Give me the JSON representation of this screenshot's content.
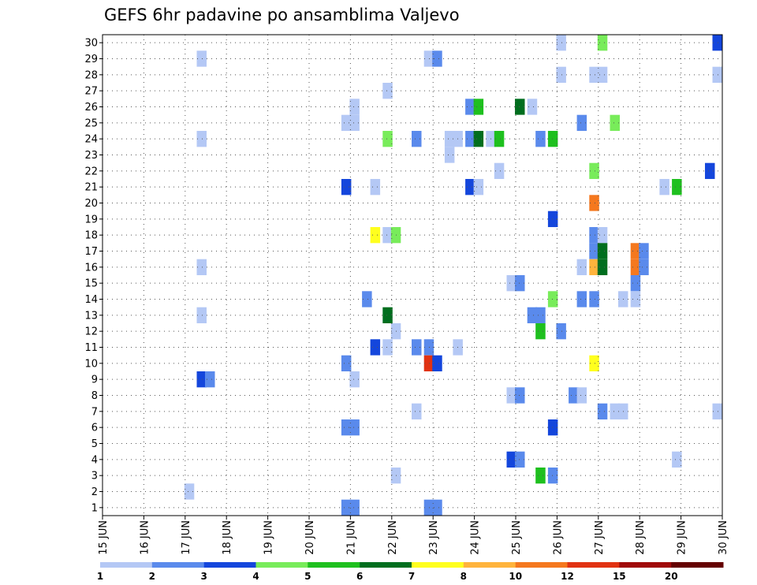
{
  "chart_data": {
    "type": "heatmap",
    "title": "GEFS 6hr padavine po ansamblima Valjevo",
    "x_tick_labels": [
      "15 JUN",
      "16 JUN",
      "17 JUN",
      "18 JUN",
      "19 JUN",
      "20 JUN",
      "21 JUN",
      "22 JUN",
      "23 JUN",
      "24 JUN",
      "25 JUN",
      "26 JUN",
      "27 JUN",
      "28 JUN",
      "29 JUN",
      "30 JUN"
    ],
    "y_tick_labels": [
      "1",
      "2",
      "3",
      "4",
      "5",
      "6",
      "7",
      "8",
      "9",
      "10",
      "11",
      "12",
      "13",
      "14",
      "15",
      "16",
      "17",
      "18",
      "19",
      "20",
      "21",
      "22",
      "23",
      "24",
      "25",
      "26",
      "27",
      "28",
      "29",
      "30"
    ],
    "grid": true,
    "legend": {
      "placement": "bottom",
      "labels": [
        "1",
        "2",
        "3",
        "4",
        "5",
        "6",
        "7",
        "8",
        "10",
        "12",
        "15",
        "20"
      ],
      "colors": [
        "#b4c8f5",
        "#5a8aec",
        "#1446dc",
        "#78ec5a",
        "#1ec01e",
        "#006e1e",
        "#ffff1e",
        "#ffb43c",
        "#f5781e",
        "#e13212",
        "#a00a0a",
        "#640000"
      ]
    },
    "cells": [
      {
        "member": 30,
        "day": 26.1,
        "class": 1
      },
      {
        "member": 30,
        "day": 27.1,
        "class": 4
      },
      {
        "member": 30,
        "day": 30.0,
        "class": 3
      },
      {
        "member": 29,
        "day": 17.4,
        "class": 1
      },
      {
        "member": 29,
        "day": 22.9,
        "class": 1
      },
      {
        "member": 29,
        "day": 23.1,
        "class": 2
      },
      {
        "member": 28,
        "day": 26.1,
        "class": 1
      },
      {
        "member": 28,
        "day": 26.9,
        "class": 1
      },
      {
        "member": 28,
        "day": 27.1,
        "class": 1
      },
      {
        "member": 28,
        "day": 30.0,
        "class": 1
      },
      {
        "member": 27,
        "day": 21.9,
        "class": 1
      },
      {
        "member": 26,
        "day": 21.1,
        "class": 1
      },
      {
        "member": 26,
        "day": 23.9,
        "class": 2
      },
      {
        "member": 26,
        "day": 24.1,
        "class": 5
      },
      {
        "member": 26,
        "day": 25.1,
        "class": 6
      },
      {
        "member": 26,
        "day": 25.4,
        "class": 1
      },
      {
        "member": 25,
        "day": 20.9,
        "class": 1
      },
      {
        "member": 25,
        "day": 21.1,
        "class": 1
      },
      {
        "member": 25,
        "day": 26.6,
        "class": 2
      },
      {
        "member": 25,
        "day": 27.4,
        "class": 4
      },
      {
        "member": 24,
        "day": 17.4,
        "class": 1
      },
      {
        "member": 24,
        "day": 21.9,
        "class": 4
      },
      {
        "member": 24,
        "day": 22.6,
        "class": 2
      },
      {
        "member": 24,
        "day": 23.4,
        "class": 1
      },
      {
        "member": 24,
        "day": 23.6,
        "class": 1
      },
      {
        "member": 24,
        "day": 23.9,
        "class": 2
      },
      {
        "member": 24,
        "day": 24.1,
        "class": 6
      },
      {
        "member": 24,
        "day": 24.4,
        "class": 1
      },
      {
        "member": 24,
        "day": 24.6,
        "class": 5
      },
      {
        "member": 24,
        "day": 25.6,
        "class": 2
      },
      {
        "member": 24,
        "day": 25.9,
        "class": 5
      },
      {
        "member": 23,
        "day": 23.4,
        "class": 1
      },
      {
        "member": 22,
        "day": 24.6,
        "class": 1
      },
      {
        "member": 22,
        "day": 26.9,
        "class": 4
      },
      {
        "member": 22,
        "day": 29.7,
        "class": 3
      },
      {
        "member": 21,
        "day": 20.9,
        "class": 3
      },
      {
        "member": 21,
        "day": 21.6,
        "class": 1
      },
      {
        "member": 21,
        "day": 23.9,
        "class": 3
      },
      {
        "member": 21,
        "day": 24.1,
        "class": 1
      },
      {
        "member": 21,
        "day": 28.6,
        "class": 1
      },
      {
        "member": 21,
        "day": 28.9,
        "class": 5
      },
      {
        "member": 20,
        "day": 26.9,
        "class": 9
      },
      {
        "member": 19,
        "day": 25.9,
        "class": 3
      },
      {
        "member": 18,
        "day": 21.6,
        "class": 7
      },
      {
        "member": 18,
        "day": 21.9,
        "class": 1
      },
      {
        "member": 18,
        "day": 22.1,
        "class": 4
      },
      {
        "member": 18,
        "day": 26.9,
        "class": 2
      },
      {
        "member": 18,
        "day": 27.1,
        "class": 1
      },
      {
        "member": 17,
        "day": 26.9,
        "class": 2
      },
      {
        "member": 17,
        "day": 27.1,
        "class": 6
      },
      {
        "member": 17,
        "day": 27.9,
        "class": 9
      },
      {
        "member": 17,
        "day": 28.1,
        "class": 2
      },
      {
        "member": 16,
        "day": 17.4,
        "class": 1
      },
      {
        "member": 16,
        "day": 26.6,
        "class": 1
      },
      {
        "member": 16,
        "day": 26.9,
        "class": 8
      },
      {
        "member": 16,
        "day": 27.1,
        "class": 6
      },
      {
        "member": 16,
        "day": 27.9,
        "class": 9
      },
      {
        "member": 16,
        "day": 28.1,
        "class": 2
      },
      {
        "member": 15,
        "day": 24.9,
        "class": 1
      },
      {
        "member": 15,
        "day": 25.1,
        "class": 2
      },
      {
        "member": 15,
        "day": 27.9,
        "class": 2
      },
      {
        "member": 14,
        "day": 21.4,
        "class": 2
      },
      {
        "member": 14,
        "day": 25.9,
        "class": 4
      },
      {
        "member": 14,
        "day": 26.6,
        "class": 2
      },
      {
        "member": 14,
        "day": 26.9,
        "class": 2
      },
      {
        "member": 14,
        "day": 27.6,
        "class": 1
      },
      {
        "member": 14,
        "day": 27.9,
        "class": 1
      },
      {
        "member": 13,
        "day": 17.4,
        "class": 1
      },
      {
        "member": 13,
        "day": 21.9,
        "class": 6
      },
      {
        "member": 13,
        "day": 25.4,
        "class": 2
      },
      {
        "member": 13,
        "day": 25.6,
        "class": 2
      },
      {
        "member": 12,
        "day": 22.1,
        "class": 1
      },
      {
        "member": 12,
        "day": 25.6,
        "class": 5
      },
      {
        "member": 12,
        "day": 26.1,
        "class": 2
      },
      {
        "member": 11,
        "day": 21.6,
        "class": 3
      },
      {
        "member": 11,
        "day": 21.9,
        "class": 1
      },
      {
        "member": 11,
        "day": 22.6,
        "class": 2
      },
      {
        "member": 11,
        "day": 22.9,
        "class": 2
      },
      {
        "member": 11,
        "day": 23.6,
        "class": 1
      },
      {
        "member": 10,
        "day": 20.9,
        "class": 2
      },
      {
        "member": 10,
        "day": 22.9,
        "class": 10
      },
      {
        "member": 10,
        "day": 23.1,
        "class": 3
      },
      {
        "member": 10,
        "day": 26.9,
        "class": 7
      },
      {
        "member": 9,
        "day": 17.4,
        "class": 3
      },
      {
        "member": 9,
        "day": 17.6,
        "class": 2
      },
      {
        "member": 9,
        "day": 21.1,
        "class": 1
      },
      {
        "member": 8,
        "day": 24.9,
        "class": 1
      },
      {
        "member": 8,
        "day": 25.1,
        "class": 2
      },
      {
        "member": 8,
        "day": 26.4,
        "class": 2
      },
      {
        "member": 8,
        "day": 26.6,
        "class": 1
      },
      {
        "member": 7,
        "day": 22.6,
        "class": 1
      },
      {
        "member": 7,
        "day": 27.1,
        "class": 2
      },
      {
        "member": 7,
        "day": 27.4,
        "class": 1
      },
      {
        "member": 7,
        "day": 27.6,
        "class": 1
      },
      {
        "member": 7,
        "day": 30.0,
        "class": 1
      },
      {
        "member": 6,
        "day": 20.9,
        "class": 2
      },
      {
        "member": 6,
        "day": 21.1,
        "class": 2
      },
      {
        "member": 6,
        "day": 25.9,
        "class": 3
      },
      {
        "member": 4,
        "day": 24.9,
        "class": 3
      },
      {
        "member": 4,
        "day": 25.1,
        "class": 2
      },
      {
        "member": 4,
        "day": 28.9,
        "class": 1
      },
      {
        "member": 3,
        "day": 22.1,
        "class": 1
      },
      {
        "member": 3,
        "day": 25.6,
        "class": 5
      },
      {
        "member": 3,
        "day": 25.9,
        "class": 2
      },
      {
        "member": 2,
        "day": 17.1,
        "class": 1
      },
      {
        "member": 1,
        "day": 20.9,
        "class": 2
      },
      {
        "member": 1,
        "day": 21.1,
        "class": 2
      },
      {
        "member": 1,
        "day": 22.9,
        "class": 2
      },
      {
        "member": 1,
        "day": 23.1,
        "class": 2
      }
    ]
  }
}
